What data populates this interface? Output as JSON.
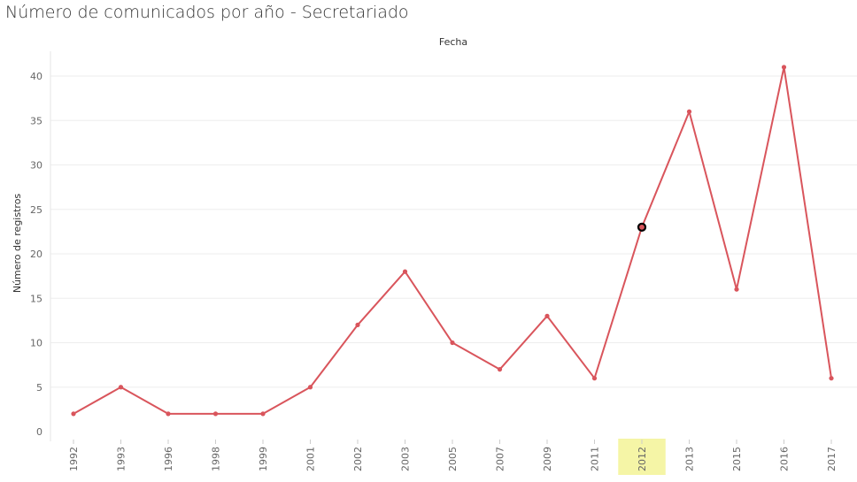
{
  "page": {
    "title": "Número de comunicados por año - Secretariado"
  },
  "colors": {
    "line": "#d9555c",
    "highlight_band": "#f5f5a6",
    "grid": "#eeeeee",
    "selected_marker": "#000000"
  },
  "chart_data": {
    "type": "line",
    "title": "Número de comunicados por año - Secretariado",
    "header_label": "Fecha",
    "xlabel": "",
    "ylabel": "Número de registros",
    "categories": [
      "1992",
      "1993",
      "1996",
      "1998",
      "1999",
      "2001",
      "2002",
      "2003",
      "2005",
      "2007",
      "2009",
      "2011",
      "2012",
      "2013",
      "2015",
      "2016",
      "2017"
    ],
    "series": [
      {
        "values": [
          2,
          5,
          2,
          2,
          2,
          5,
          12,
          18,
          10,
          7,
          13,
          6,
          23,
          36,
          16,
          41,
          6
        ]
      }
    ],
    "ylim": [
      0,
      44
    ],
    "yticks": [
      0,
      5,
      10,
      15,
      20,
      25,
      30,
      35,
      40
    ],
    "grid": true,
    "legend": "none",
    "highlighted_category": "2012"
  }
}
